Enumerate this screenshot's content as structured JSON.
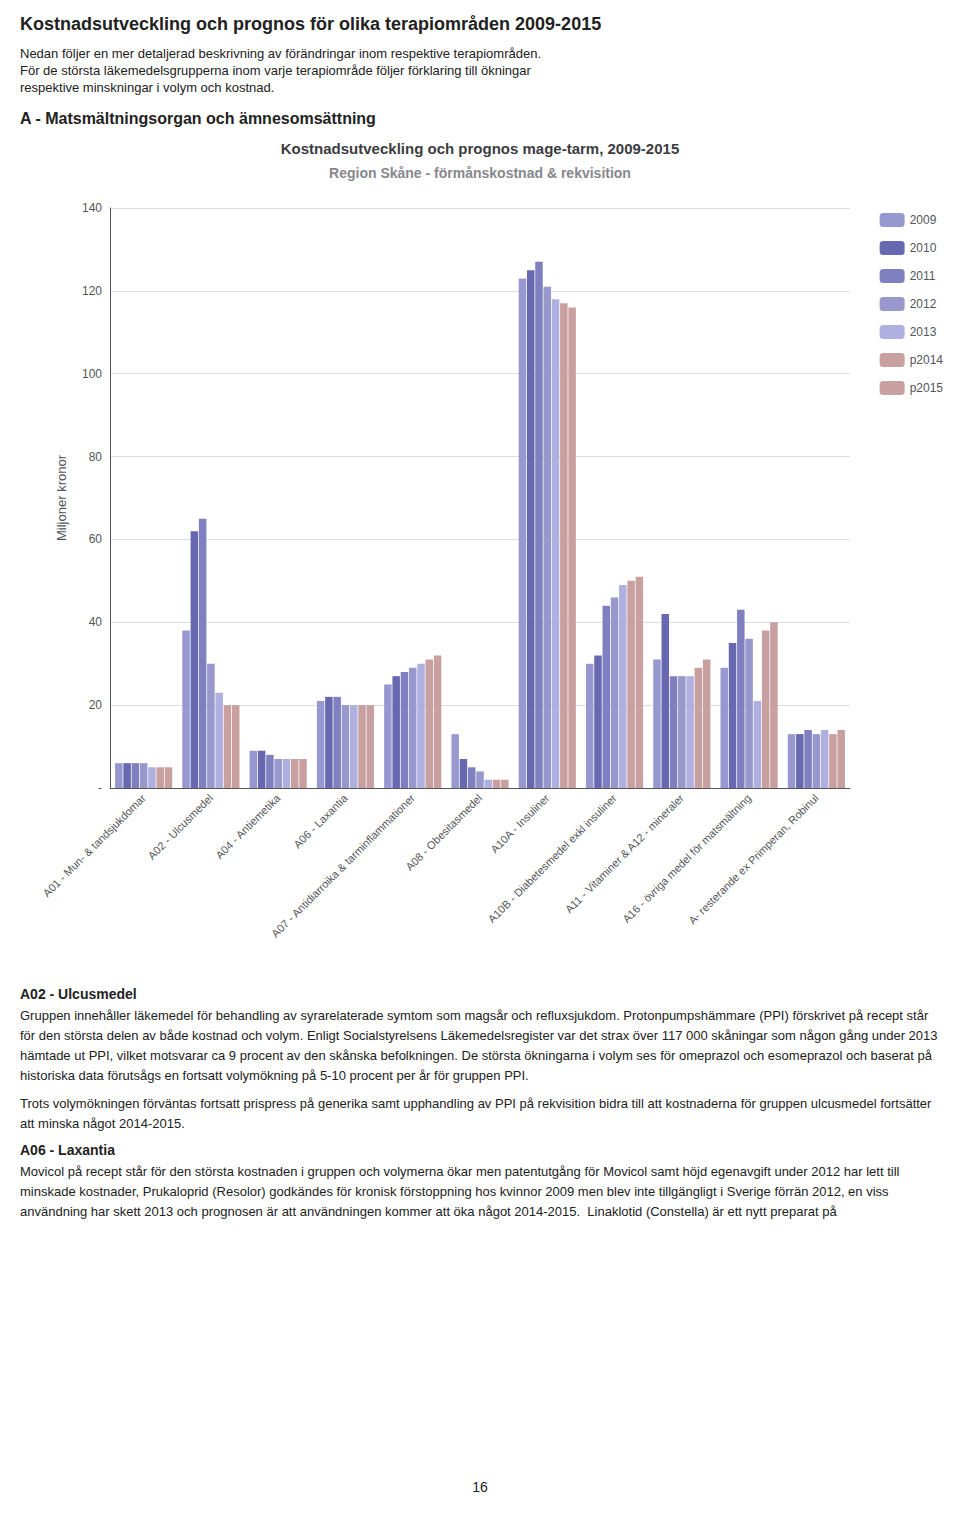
{
  "page": {
    "heading": "Kostnadsutveckling och prognos för olika terapiområden 2009-2015",
    "intro": [
      "Nedan följer en mer detaljerad beskrivning av förändringar inom respektive terapiområden.",
      "För de största läkemedelsgrupperna inom varje terapiområde följer förklaring till ökningar",
      "respektive minskningar i volym och kostnad."
    ],
    "section": "A - Matsmältningsorgan och ämnesomsättning",
    "sections": [
      {
        "title": "A02 - Ulcusmedel",
        "paragraphs": [
          "Gruppen innehåller läkemedel för behandling av syrarelaterade symtom som magsår och refluxsjukdom. Protonpumpshämmare (PPI) förskrivet på recept står för den största delen av både kostnad och volym. Enligt Socialstyrelsens Läkemedelsregister var det strax över 117 000 skåningar som någon gång under 2013 hämtade ut PPI, vilket motsvarar ca 9 procent av den skånska befolkningen. De största ökningarna i volym ses för omeprazol och esomeprazol och baserat på historiska data förutsågs en fortsatt volymökning på 5-10 procent per år för gruppen PPI.",
          "Trots volymökningen förväntas fortsatt prispress på generika samt upphandling av PPI på rekvisition bidra till att kostnaderna för gruppen ulcusmedel fortsätter att minska något 2014-2015."
        ]
      },
      {
        "title": "A06 - Laxantia",
        "paragraphs": [
          "Movicol på recept står för den största kostnaden i gruppen och volymerna ökar men patentutgång för Movicol samt höjd egenavgift under 2012 har lett till minskade kostnader, Prukaloprid (Resolor) godkändes för kronisk förstoppning hos kvinnor 2009 men blev inte tillgängligt i Sverige förrän 2012, en viss användning har skett 2013 och prognosen är att användningen kommer att öka något 2014-2015.  Linaklotid (Constella) är ett nytt preparat på"
        ]
      }
    ],
    "page_number": "16"
  },
  "chart_data": {
    "type": "bar",
    "title": "Kostnadsutveckling och prognos mage-tarm, 2009-2015",
    "subtitle": "Region Skåne - förmånskostnad & rekvisition",
    "ylabel": "Miljoner kronor",
    "ylim": [
      0,
      140
    ],
    "yticks": [
      {
        "value": 0,
        "label": "-"
      },
      20,
      40,
      60,
      80,
      100,
      120,
      140
    ],
    "grid": true,
    "legend": "upper right",
    "categories": [
      "A01 - Mun- & tandsjukdomar",
      "A02 - Ulcusmedel",
      "A04 - Antiemetika",
      "A06 - Laxantia",
      "A07 - Antidiarroika & tarminflammationer",
      "A08 - Obesitasmedel",
      "A10A - Insuliner",
      "A10B - Diabetesmedel exkl insuliner",
      "A11 - Vitaminer & A12 - mineraler",
      "A16 - övriga medel för matsmältning",
      "A- resterande ex Primperan, Robinul"
    ],
    "series": [
      {
        "name": "2009",
        "color": "#9898d0",
        "values": [
          6,
          38,
          9,
          21,
          25,
          13,
          123,
          30,
          31,
          29,
          13
        ]
      },
      {
        "name": "2010",
        "color": "#6868b0",
        "values": [
          6,
          62,
          9,
          22,
          27,
          7,
          125,
          32,
          42,
          35,
          13
        ]
      },
      {
        "name": "2011",
        "color": "#8080c0",
        "values": [
          6,
          65,
          8,
          22,
          28,
          5,
          127,
          44,
          27,
          43,
          14
        ]
      },
      {
        "name": "2012",
        "color": "#9898cc",
        "values": [
          6,
          30,
          7,
          20,
          29,
          4,
          121,
          46,
          27,
          36,
          13
        ]
      },
      {
        "name": "2013",
        "color": "#b0b0e0",
        "values": [
          5,
          23,
          7,
          20,
          30,
          2,
          118,
          49,
          27,
          21,
          14
        ]
      },
      {
        "name": "p2014",
        "color": "#c8a0a0",
        "values": [
          5,
          20,
          7,
          20,
          31,
          2,
          117,
          50,
          29,
          38,
          13
        ]
      },
      {
        "name": "p2015",
        "color": "#c8a0a0",
        "values": [
          5,
          20,
          7,
          20,
          32,
          2,
          116,
          51,
          31,
          40,
          14
        ]
      }
    ]
  }
}
